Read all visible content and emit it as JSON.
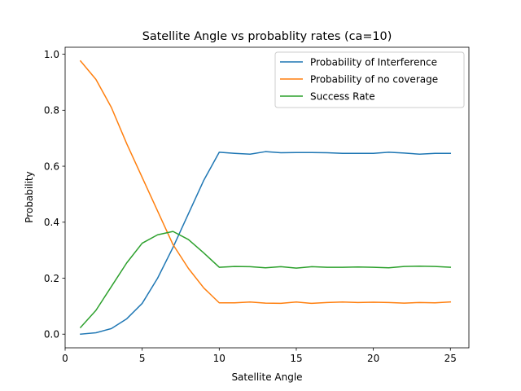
{
  "chart_data": {
    "type": "line",
    "title": "Satellite Angle vs probablity rates (ca=10)",
    "xlabel": "Satellite Angle",
    "ylabel": "Probability",
    "xlim": [
      0,
      26.2
    ],
    "ylim": [
      -0.0488,
      1.025
    ],
    "xticks": [
      0,
      5,
      10,
      15,
      20,
      25
    ],
    "yticks": [
      0.0,
      0.2,
      0.4,
      0.6,
      0.8,
      1.0
    ],
    "grid": false,
    "legend_position": "top-right",
    "x": [
      1,
      2,
      3,
      4,
      5,
      6,
      7,
      8,
      9,
      10,
      11,
      12,
      13,
      14,
      15,
      16,
      17,
      18,
      19,
      20,
      21,
      22,
      23,
      24,
      25
    ],
    "series": [
      {
        "name": "Probability of Interference",
        "color": "#1f77b4",
        "values": [
          0.0,
          0.005,
          0.02,
          0.055,
          0.11,
          0.2,
          0.31,
          0.43,
          0.55,
          0.65,
          0.646,
          0.643,
          0.652,
          0.648,
          0.649,
          0.649,
          0.648,
          0.646,
          0.646,
          0.646,
          0.65,
          0.647,
          0.643,
          0.646,
          0.646
        ]
      },
      {
        "name": "Probability of no coverage",
        "color": "#ff7f0e",
        "values": [
          0.976,
          0.91,
          0.81,
          0.68,
          0.56,
          0.44,
          0.32,
          0.235,
          0.165,
          0.112,
          0.112,
          0.115,
          0.111,
          0.11,
          0.115,
          0.11,
          0.113,
          0.115,
          0.113,
          0.114,
          0.113,
          0.111,
          0.113,
          0.112,
          0.115
        ]
      },
      {
        "name": "Success Rate",
        "color": "#2ca02c",
        "values": [
          0.024,
          0.085,
          0.17,
          0.255,
          0.325,
          0.355,
          0.367,
          0.338,
          0.29,
          0.239,
          0.242,
          0.241,
          0.237,
          0.241,
          0.236,
          0.241,
          0.239,
          0.239,
          0.24,
          0.239,
          0.237,
          0.242,
          0.243,
          0.242,
          0.239
        ]
      }
    ]
  }
}
